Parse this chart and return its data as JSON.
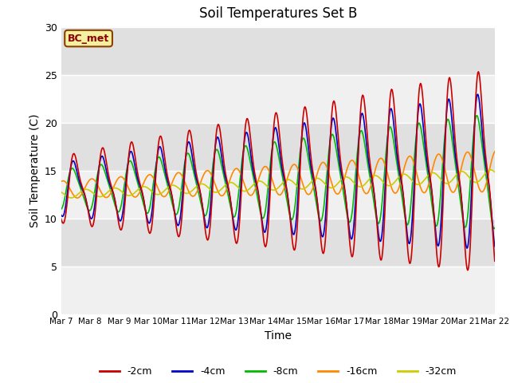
{
  "title": "Soil Temperatures Set B",
  "xlabel": "Time",
  "ylabel": "Soil Temperature (C)",
  "ylim": [
    0,
    30
  ],
  "annotation": "BC_met",
  "x_tick_labels": [
    "Mar 7",
    "Mar 8",
    "Mar 9",
    "Mar 10",
    "Mar 11",
    "Mar 12",
    "Mar 13",
    "Mar 14",
    "Mar 15",
    "Mar 16",
    "Mar 17",
    "Mar 18",
    "Mar 19",
    "Mar 20",
    "Mar 21",
    "Mar 22"
  ],
  "series": {
    "-2cm": {
      "color": "#cc0000",
      "lw": 1.2
    },
    "-4cm": {
      "color": "#0000cc",
      "lw": 1.2
    },
    "-8cm": {
      "color": "#00bb00",
      "lw": 1.2
    },
    "-16cm": {
      "color": "#ff8800",
      "lw": 1.2
    },
    "-32cm": {
      "color": "#cccc00",
      "lw": 1.2
    }
  },
  "bg_color": "#e8e8e8",
  "grid_color": "#ffffff",
  "plot_bg_light": "#f0f0f0",
  "plot_bg_dark": "#d8d8d8"
}
